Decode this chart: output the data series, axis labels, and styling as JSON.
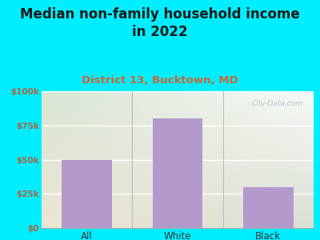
{
  "title": "Median non-family household income\nin 2022",
  "subtitle": "District 13, Bucktown, MD",
  "categories": [
    "All",
    "White",
    "Black"
  ],
  "values": [
    50000,
    80000,
    30000
  ],
  "bar_color": "#b399cc",
  "title_fontsize": 12,
  "subtitle_fontsize": 9.5,
  "title_color": "#1a1a1a",
  "subtitle_color": "#cc6633",
  "background_outer": "#00eeff",
  "bg_top_left": "#d8f0d8",
  "bg_top_right": "#f0f8f0",
  "bg_bottom": "#e8f5e8",
  "ylim": [
    0,
    100000
  ],
  "yticks": [
    0,
    25000,
    50000,
    75000,
    100000
  ],
  "ytick_labels": [
    "$0",
    "$25k",
    "$50k",
    "$75k",
    "$100k"
  ],
  "tick_color": "#aa6644",
  "watermark": "City-Data.com",
  "watermark_color": "#aabbcc"
}
